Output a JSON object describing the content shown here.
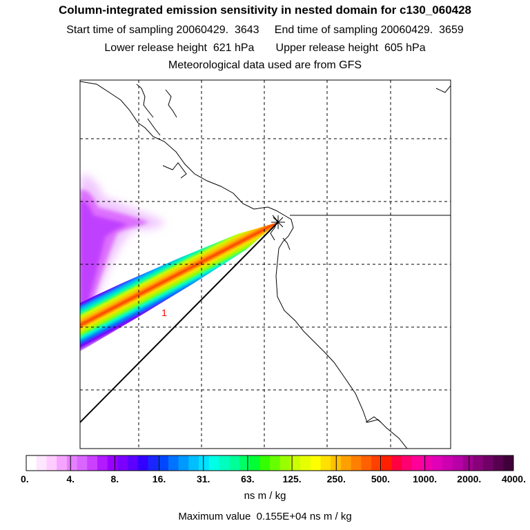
{
  "chart_data": {
    "type": "heatmap",
    "title": "Column-integrated emission sensitivity in nested domain for c130_060428",
    "subtitles": [
      "Start time of sampling 20060429.  3643     End time of sampling 20060429.  3659",
      "Lower release height  621 hPa       Upper release height  605 hPa",
      "Meteorological data used are from GFS"
    ],
    "plume_label": "1",
    "colorbar": {
      "tick_labels": [
        "0.",
        "4.",
        "8.",
        "16.",
        "31.",
        "63.",
        "125.",
        "250.",
        "500.",
        "1000.",
        "2000.",
        "4000."
      ],
      "colors": [
        "#ffffff",
        "#ffe6ff",
        "#ffccff",
        "#f5a5ff",
        "#e680ff",
        "#d966ff",
        "#cc40ff",
        "#b21aff",
        "#9900ff",
        "#7a00ff",
        "#5c00ff",
        "#3300ff",
        "#1a26ff",
        "#0047ff",
        "#0073ff",
        "#0099ff",
        "#00bfff",
        "#00e0ff",
        "#00ffe6",
        "#00ffbf",
        "#00ff99",
        "#00ff66",
        "#00ff33",
        "#33ff00",
        "#66ff00",
        "#99ff00",
        "#ccff00",
        "#e6ff00",
        "#ffff00",
        "#ffe000",
        "#ffc000",
        "#ffa000",
        "#ff8000",
        "#ff6000",
        "#ff4000",
        "#ff2000",
        "#ff0040",
        "#ff0070",
        "#ff0099",
        "#f000aa",
        "#e000b8",
        "#cc00b0",
        "#b800a8",
        "#a00090",
        "#88007a",
        "#700066",
        "#580050",
        "#40003a"
      ],
      "units": "ns m / kg"
    },
    "max_value_text": "Maximum value  0.155E+04 ns m / kg",
    "colors": {
      "frame": "#000000",
      "grid": "#000000"
    }
  }
}
